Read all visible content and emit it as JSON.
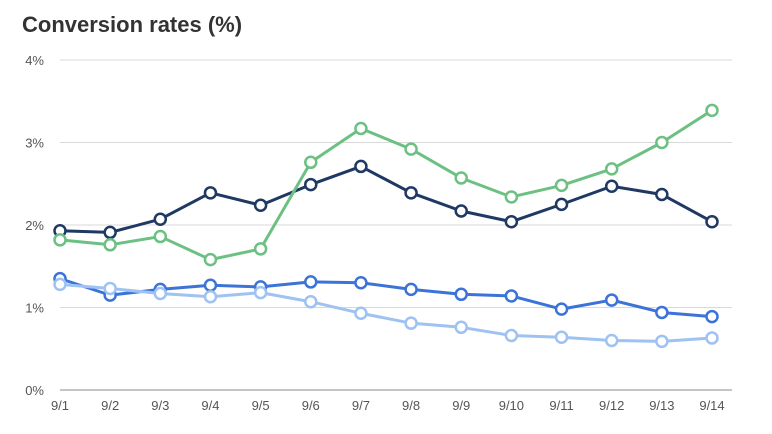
{
  "chart_data": {
    "type": "line",
    "title": "Conversion rates (%)",
    "xlabel": "",
    "ylabel": "",
    "categories": [
      "9/1",
      "9/2",
      "9/3",
      "9/4",
      "9/5",
      "9/6",
      "9/7",
      "9/8",
      "9/9",
      "9/10",
      "9/11",
      "9/12",
      "9/13",
      "9/14"
    ],
    "ylim": [
      0,
      4
    ],
    "yticks": [
      0,
      1,
      2,
      3,
      4
    ],
    "ytick_labels": [
      "0%",
      "1%",
      "2%",
      "3%",
      "4%"
    ],
    "grid": true,
    "legend": "none",
    "series": [
      {
        "color": "#1f3864",
        "values": [
          1.93,
          1.91,
          2.07,
          2.39,
          2.24,
          2.49,
          2.71,
          2.39,
          2.17,
          2.04,
          2.25,
          2.47,
          2.37,
          2.04
        ]
      },
      {
        "color": "#6cc182",
        "values": [
          1.82,
          1.76,
          1.86,
          1.58,
          1.71,
          2.76,
          3.17,
          2.92,
          2.57,
          2.34,
          2.48,
          2.68,
          3.0,
          3.39
        ]
      },
      {
        "color": "#3b73d9",
        "values": [
          1.35,
          1.15,
          1.22,
          1.27,
          1.25,
          1.31,
          1.3,
          1.22,
          1.16,
          1.14,
          0.98,
          1.09,
          0.94,
          0.89
        ]
      },
      {
        "color": "#9ec2f2",
        "values": [
          1.28,
          1.23,
          1.17,
          1.13,
          1.18,
          1.07,
          0.93,
          0.81,
          0.76,
          0.66,
          0.64,
          0.6,
          0.59,
          0.63
        ]
      }
    ]
  }
}
